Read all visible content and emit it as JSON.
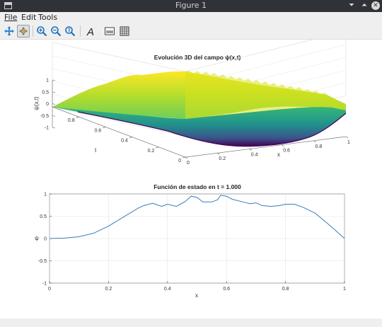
{
  "window": {
    "title": "Figure 1"
  },
  "menu": {
    "file": "File",
    "edit": "Edit",
    "tools": "Tools"
  },
  "toolbar_icons": [
    "pan-icon",
    "rotate-icon",
    "zoom-in-icon",
    "zoom-out-icon",
    "zoom-reset-icon",
    "text-icon",
    "image-icon",
    "grid-icon"
  ],
  "colors": {
    "line": "#3d7ab8",
    "surface_low": "#440154",
    "surface_mid": "#21918c",
    "surface_high": "#fde725",
    "titlebar": "#2f3338"
  },
  "chart_data": [
    {
      "type": "surface",
      "title": "Evolución 3D del campo ψ(x,t)",
      "xlabel": "x",
      "ylabel": "t",
      "zlabel": "ψ(x,t)",
      "x_ticks": [
        "0",
        "0.2",
        "0.4",
        "0.6",
        "0.8",
        "1"
      ],
      "t_ticks": [
        "0",
        "0.2",
        "0.4",
        "0.6",
        "0.8"
      ],
      "z_ticks": [
        "-1",
        "-0.5",
        "0",
        "0.5",
        "1"
      ],
      "xlim": [
        0,
        1
      ],
      "tlim": [
        0,
        1
      ],
      "zlim": [
        -1,
        1
      ],
      "colormap": "viridis"
    },
    {
      "type": "line",
      "title": "Función de estado en t = 1.000",
      "xlabel": "x",
      "ylabel": "ψ",
      "xlim": [
        0,
        1
      ],
      "ylim": [
        -1,
        1
      ],
      "x_ticks": [
        "0",
        "0.2",
        "0.4",
        "0.6",
        "0.8",
        "1"
      ],
      "y_ticks": [
        "-1",
        "-0.5",
        "0",
        "0.5",
        "1"
      ],
      "grid": true,
      "x": [
        0,
        0.05,
        0.1,
        0.15,
        0.2,
        0.25,
        0.3,
        0.32,
        0.35,
        0.38,
        0.4,
        0.43,
        0.46,
        0.48,
        0.5,
        0.52,
        0.55,
        0.57,
        0.58,
        0.6,
        0.62,
        0.65,
        0.68,
        0.7,
        0.72,
        0.75,
        0.78,
        0.8,
        0.83,
        0.86,
        0.9,
        0.94,
        0.97,
        1.0
      ],
      "y": [
        0,
        0.01,
        0.04,
        0.12,
        0.28,
        0.48,
        0.68,
        0.74,
        0.79,
        0.72,
        0.77,
        0.72,
        0.83,
        0.95,
        0.92,
        0.82,
        0.82,
        0.87,
        0.97,
        0.95,
        0.88,
        0.83,
        0.78,
        0.8,
        0.74,
        0.72,
        0.74,
        0.77,
        0.77,
        0.7,
        0.57,
        0.35,
        0.18,
        0.0
      ]
    }
  ]
}
